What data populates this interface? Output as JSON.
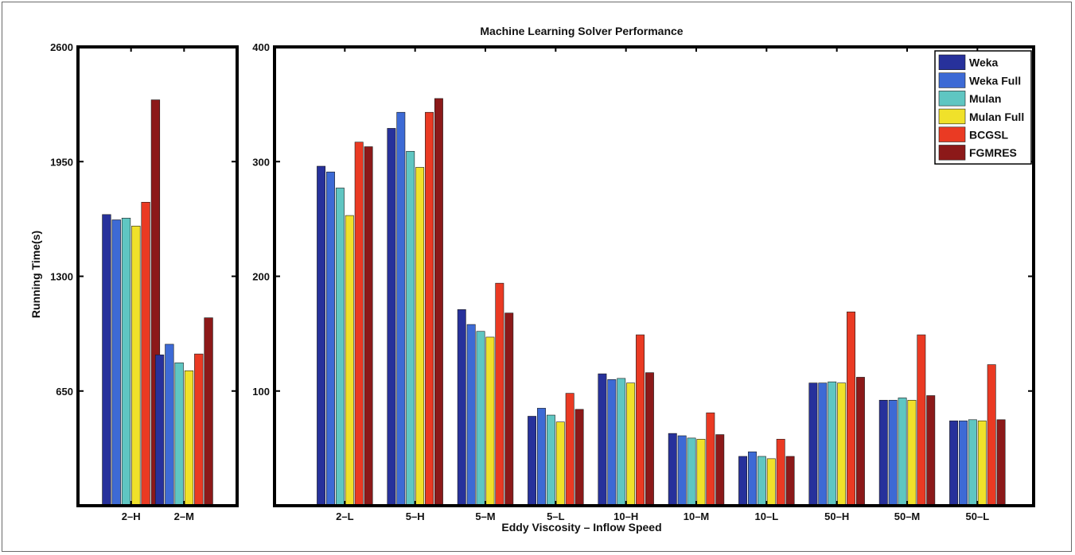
{
  "chart_data": [
    {
      "type": "bar",
      "ylabel": "Running Time(s)",
      "ylim": [
        0,
        2600
      ],
      "yticks": [
        650,
        1300,
        1950,
        2600
      ],
      "categories": [
        "2–H",
        "2–M"
      ],
      "series": [
        {
          "name": "Weka",
          "color": "#27319b",
          "values": [
            1650,
            855
          ]
        },
        {
          "name": "Weka Full",
          "color": "#3d6ad5",
          "values": [
            1620,
            915
          ]
        },
        {
          "name": "Mulan",
          "color": "#5fc6c2",
          "values": [
            1630,
            810
          ]
        },
        {
          "name": "Mulan Full",
          "color": "#f0e12a",
          "values": [
            1585,
            765
          ]
        },
        {
          "name": "BCGSL",
          "color": "#ea3a23",
          "values": [
            1720,
            860
          ]
        },
        {
          "name": "FGMRES",
          "color": "#8c1919",
          "values": [
            2300,
            1065
          ]
        }
      ]
    },
    {
      "type": "bar",
      "title": "Machine Learning Solver Performance",
      "xlabel": "Eddy Viscosity – Inflow Speed",
      "ylim": [
        0,
        400
      ],
      "yticks": [
        100,
        200,
        300,
        400
      ],
      "legend_position": "top-right",
      "categories": [
        "2–L",
        "5–H",
        "5–M",
        "5–L",
        "10–H",
        "10–M",
        "10–L",
        "50–H",
        "50–M",
        "50–L"
      ],
      "series": [
        {
          "name": "Weka",
          "color": "#27319b",
          "values": [
            296,
            329,
            171,
            78,
            115,
            63,
            43,
            107,
            92,
            74
          ]
        },
        {
          "name": "Weka Full",
          "color": "#3d6ad5",
          "values": [
            291,
            343,
            158,
            85,
            110,
            61,
            47,
            107,
            92,
            74
          ]
        },
        {
          "name": "Mulan",
          "color": "#5fc6c2",
          "values": [
            277,
            309,
            152,
            79,
            111,
            59,
            43,
            108,
            94,
            75
          ]
        },
        {
          "name": "Mulan Full",
          "color": "#f0e12a",
          "values": [
            253,
            295,
            147,
            73,
            107,
            58,
            41,
            107,
            92,
            74
          ]
        },
        {
          "name": "BCGSL",
          "color": "#ea3a23",
          "values": [
            317,
            343,
            194,
            98,
            149,
            81,
            58,
            169,
            149,
            123
          ]
        },
        {
          "name": "FGMRES",
          "color": "#8c1919",
          "values": [
            313,
            355,
            168,
            84,
            116,
            62,
            43,
            112,
            96,
            75
          ]
        }
      ]
    }
  ]
}
